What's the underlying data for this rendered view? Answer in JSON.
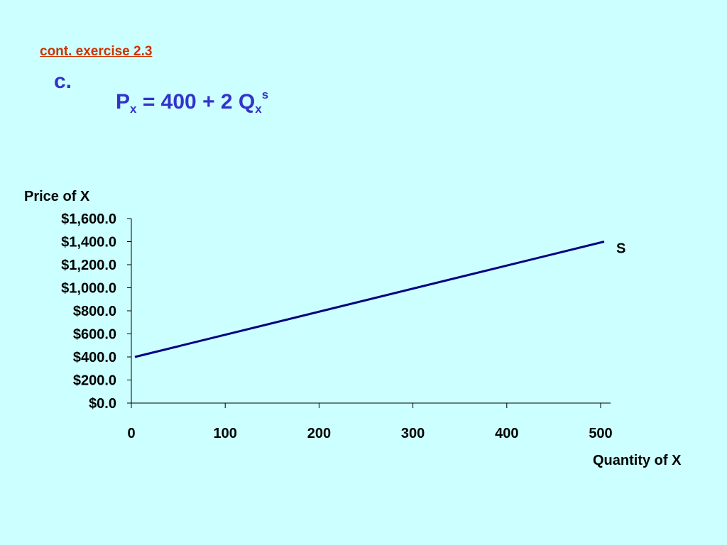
{
  "slide": {
    "subtitle": "cont. exercise 2.3",
    "part_label": "c.",
    "equation": {
      "lhs": "P",
      "lhs_sub": "x",
      "middle": " =  400 + 2 Q",
      "rhs_sub": "x",
      "rhs_sup": "s"
    }
  },
  "colors": {
    "background": "#ccffff",
    "subtitle": "#cc3300",
    "heading": "#3333cc",
    "line": "#000080",
    "axis": "#000000"
  },
  "chart_data": {
    "type": "line",
    "ylabel": "Price of X",
    "xlabel": "Quantity of X",
    "x_ticks": [
      "0",
      "100",
      "200",
      "300",
      "400",
      "500"
    ],
    "y_ticks": [
      "$0.0",
      "$200.0",
      "$400.0",
      "$600.0",
      "$800.0",
      "$1,000.0",
      "$1,200.0",
      "$1,400.0",
      "$1,600.0"
    ],
    "xlim": [
      0,
      500
    ],
    "ylim": [
      0,
      1600
    ],
    "grid": false,
    "series": [
      {
        "name": "S",
        "x": [
          0,
          500
        ],
        "y": [
          400,
          1400
        ]
      }
    ]
  }
}
